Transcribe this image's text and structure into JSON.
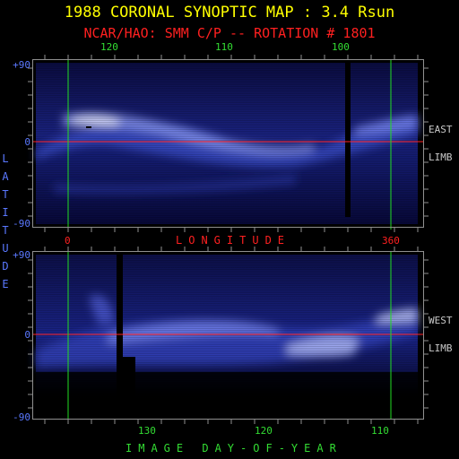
{
  "header": {
    "title": "1988 CORONAL SYNOPTIC MAP : 3.4 Rsun",
    "subtitle": "NCAR/HAO: SMM C/P -- ROTATION # 1801"
  },
  "colors": {
    "title": "#ffff00",
    "subtitle": "#ff2020",
    "top_ticks": "#33dd33",
    "latitude": "#5a78ff",
    "side": "#c8c8c8",
    "longitude": "#ff2020",
    "bottom_axis": "#33dd33",
    "equator_line": "#ff2020",
    "marker_line": "#22dd22",
    "frame": "#909090"
  },
  "top_axis": {
    "labels": [
      "120",
      "110",
      "100"
    ]
  },
  "latitude_axis": {
    "top_panel": [
      "+90",
      "0",
      "-90"
    ],
    "bottom_panel": [
      "+90",
      "0",
      "-90"
    ],
    "label": "LATITUDE"
  },
  "longitude_axis": {
    "start": "0",
    "end": "360",
    "label": "LONGITUDE"
  },
  "bottom_axis": {
    "labels": [
      "130",
      "120",
      "110"
    ],
    "label": "IMAGE DAY-OF-YEAR"
  },
  "side_labels": {
    "top_panel": [
      "EAST",
      "LIMB"
    ],
    "bottom_panel": [
      "WEST",
      "LIMB"
    ]
  }
}
